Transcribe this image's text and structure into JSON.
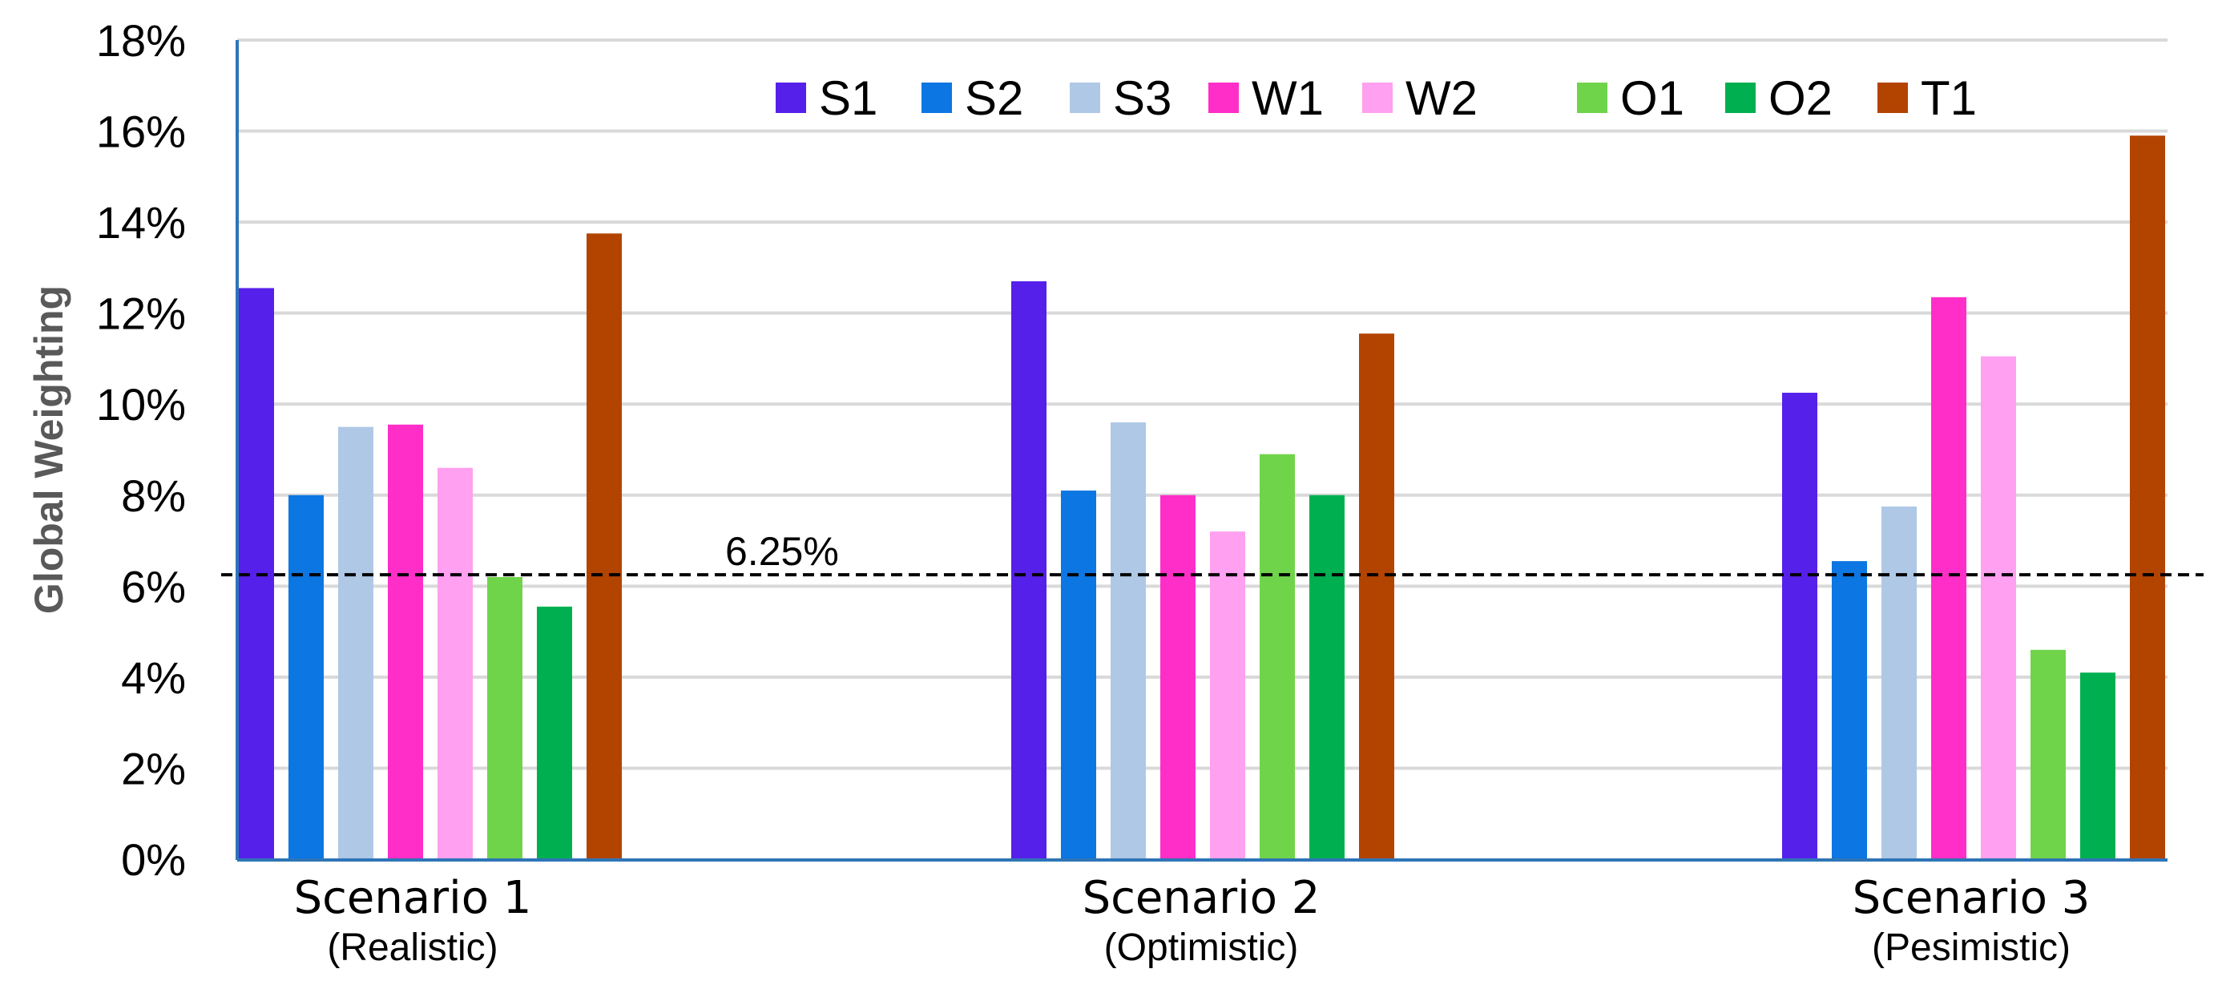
{
  "chart_data": {
    "type": "bar",
    "title": "",
    "xlabel": "",
    "ylabel": "Global Weighting",
    "ylim": [
      0,
      18
    ],
    "y_ticks": [
      "0%",
      "2%",
      "4%",
      "6%",
      "8%",
      "10%",
      "12%",
      "14%",
      "16%",
      "18%"
    ],
    "y_tick_values": [
      0,
      2,
      4,
      6,
      8,
      10,
      12,
      14,
      16,
      18
    ],
    "grid": true,
    "legend_position": "top",
    "categories": [
      {
        "name": "Scenario 1",
        "sub": "(Realistic)"
      },
      {
        "name": "Scenario 2",
        "sub": "(Optimistic)"
      },
      {
        "name": "Scenario 3",
        "sub": "(Pesimistic)"
      }
    ],
    "series": [
      {
        "name": "S1",
        "color": "#5520EA",
        "values": [
          12.55,
          12.7,
          10.25
        ]
      },
      {
        "name": "S2",
        "color": "#0C76E2",
        "values": [
          8.0,
          8.1,
          6.55
        ]
      },
      {
        "name": "S3",
        "color": "#AFC8E6",
        "values": [
          9.5,
          9.6,
          7.75
        ]
      },
      {
        "name": "W1",
        "color": "#FF2EC8",
        "values": [
          9.55,
          8.0,
          12.35
        ]
      },
      {
        "name": "W2",
        "color": "#FFA0F0",
        "values": [
          8.6,
          7.2,
          11.05
        ]
      },
      {
        "name": "O1",
        "color": "#70D44B",
        "values": [
          6.2,
          8.9,
          4.6
        ]
      },
      {
        "name": "O2",
        "color": "#00B050",
        "values": [
          5.55,
          8.0,
          4.1
        ]
      },
      {
        "name": "T1",
        "color": "#B34400",
        "values": [
          13.75,
          11.55,
          15.9
        ]
      }
    ],
    "reference_line": {
      "value": 6.25,
      "label": "6.25%"
    }
  }
}
